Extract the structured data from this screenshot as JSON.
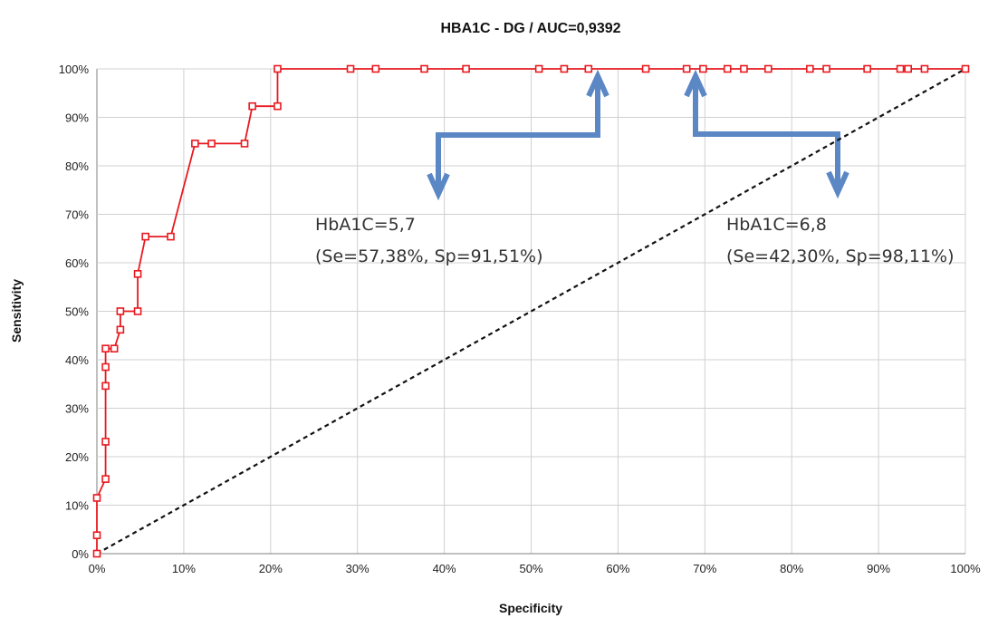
{
  "chart_data": {
    "type": "line",
    "title": "HBA1C - DG / AUC=0,9392",
    "xlabel": "Specificity",
    "ylabel": "Sensitivity",
    "xlim": [
      0,
      100
    ],
    "ylim": [
      0,
      100
    ],
    "x_ticks": [
      "0%",
      "10%",
      "20%",
      "30%",
      "40%",
      "50%",
      "60%",
      "70%",
      "80%",
      "90%",
      "100%"
    ],
    "y_ticks": [
      "0%",
      "10%",
      "20%",
      "30%",
      "40%",
      "50%",
      "60%",
      "70%",
      "80%",
      "90%",
      "100%"
    ],
    "grid": true,
    "colors": {
      "roc": "#e8191f",
      "reference": "#111111",
      "arrow": "#5b87c5"
    },
    "series": [
      {
        "x": [
          0,
          0,
          0,
          1,
          1,
          1,
          1,
          1,
          2,
          2.7,
          2.7,
          4.7,
          4.7,
          5.6,
          8.5,
          11.3,
          13.2,
          17,
          17.9,
          20.8,
          20.8,
          29.2,
          32.1,
          37.7,
          42.5,
          50.9,
          53.8,
          56.6,
          63.2,
          67.9,
          69.8,
          72.6,
          74.5,
          77.3,
          82.1,
          84,
          88.7,
          92.5,
          93.4,
          95.3,
          100
        ],
        "y": [
          0,
          3.8,
          11.5,
          15.4,
          23.1,
          34.6,
          38.5,
          42.3,
          42.3,
          46.2,
          50,
          50,
          57.7,
          65.4,
          65.4,
          84.6,
          84.6,
          84.6,
          92.3,
          92.3,
          100,
          100,
          100,
          100,
          100,
          100,
          100,
          100,
          100,
          100,
          100,
          100,
          100,
          100,
          100,
          100,
          100,
          100,
          100,
          100,
          100
        ]
      },
      {
        "x": [
          0,
          100
        ],
        "y": [
          0,
          100
        ]
      }
    ],
    "annotations": [
      {
        "line1": "HbA1C=5,7",
        "line2": "(Se=57,38%, Sp=91,51%)"
      },
      {
        "line1": "HbA1C=6,8",
        "line2": "(Se=42,30%, Sp=98,11%)"
      }
    ]
  }
}
